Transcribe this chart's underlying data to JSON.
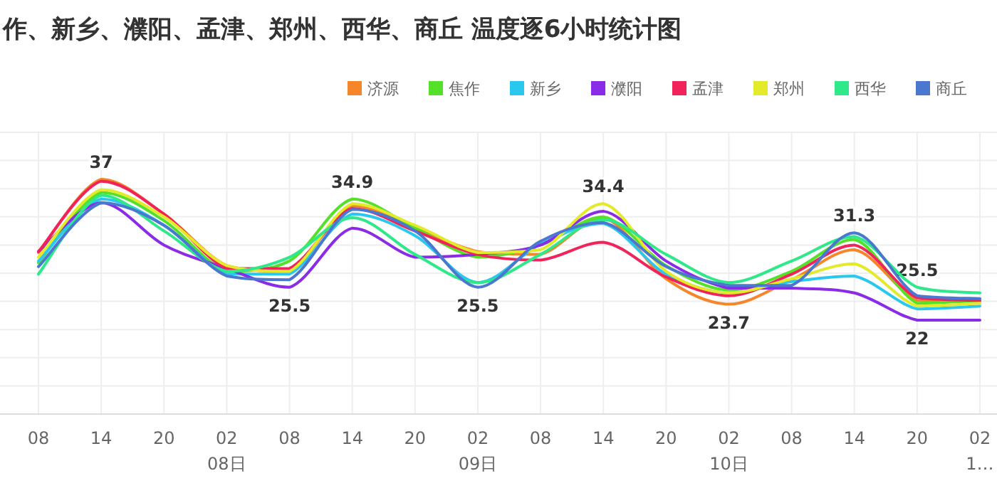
{
  "chart_data": {
    "type": "line",
    "title": "作、新乡、濮阳、孟津、郑州、西华、商丘 温度逐6小时统计图",
    "categories": [
      "08",
      "14",
      "20",
      "02\n08日",
      "08",
      "14",
      "20",
      "02\n09日",
      "08",
      "14",
      "20",
      "02\n10日",
      "08",
      "14",
      "20",
      "02\n1…"
    ],
    "ylim": [
      12,
      42
    ],
    "yticks": [
      {
        "value": 12,
        "label": null
      },
      {
        "value": 15,
        "label": null
      },
      {
        "value": 18,
        "label": null
      },
      {
        "value": 21,
        "label": null
      },
      {
        "value": 24,
        "label": null
      },
      {
        "value": 27,
        "label": null
      },
      {
        "value": 30,
        "label": null
      },
      {
        "value": 33,
        "label": null
      },
      {
        "value": 36,
        "label": null
      },
      {
        "value": 39,
        "label": null
      },
      {
        "value": 42,
        "label": null
      }
    ],
    "tick_labels": "x",
    "grid": true,
    "legend": "top right",
    "marker": "none",
    "line_style": "solid",
    "series": [
      {
        "name": "济源",
        "color": "#f5862a",
        "values": [
          29.2,
          37,
          33.3,
          27.8,
          27.2,
          34.2,
          31.8,
          29.3,
          29.0,
          32.9,
          26.4,
          23.7,
          26.3,
          29.5,
          24.1,
          24.0
        ],
        "value_labels": [
          null,
          "37",
          null,
          null,
          null,
          null,
          null,
          null,
          null,
          null,
          null,
          "23.7",
          null,
          null,
          null,
          null
        ]
      },
      {
        "name": "焦作",
        "color": "#55e02a",
        "values": [
          28.1,
          35.6,
          32.6,
          27.2,
          28.3,
          34.9,
          31.8,
          28.7,
          30.0,
          33.0,
          27.8,
          25.2,
          27.2,
          30.6,
          23.8,
          24.1
        ],
        "value_labels": [
          null,
          null,
          null,
          null,
          null,
          "34.9",
          null,
          null,
          null,
          null,
          null,
          null,
          null,
          null,
          null,
          null
        ]
      },
      {
        "name": "新乡",
        "color": "#2ac8ee",
        "values": [
          28.3,
          34.9,
          32.1,
          26.9,
          26.9,
          33.3,
          31.0,
          26.0,
          30.1,
          32.3,
          26.9,
          24.9,
          26.1,
          26.7,
          23.2,
          23.5
        ]
      },
      {
        "name": "濮阳",
        "color": "#8a2be8",
        "values": [
          29.3,
          34.5,
          30.0,
          27.5,
          25.5,
          31.8,
          28.7,
          29.0,
          30.0,
          33.6,
          28.3,
          25.4,
          25.4,
          24.9,
          22.0,
          22.0
        ],
        "value_labels": [
          null,
          null,
          null,
          null,
          "25.5",
          null,
          null,
          null,
          null,
          null,
          null,
          null,
          null,
          null,
          "22",
          null
        ]
      },
      {
        "name": "孟津",
        "color": "#f0245a",
        "values": [
          29.3,
          36.8,
          33.3,
          27.5,
          27.5,
          33.9,
          31.5,
          29.0,
          28.4,
          30.3,
          26.6,
          24.6,
          26.9,
          30.0,
          24.4,
          24.1
        ]
      },
      {
        "name": "郑州",
        "color": "#e2ea2a",
        "values": [
          28.7,
          35.9,
          33.0,
          27.8,
          27.2,
          34.4,
          32.1,
          29.2,
          29.5,
          34.4,
          27.2,
          24.9,
          26.4,
          28.0,
          23.5,
          23.8
        ],
        "value_labels": [
          null,
          null,
          null,
          null,
          null,
          null,
          null,
          null,
          null,
          "34.4",
          null,
          null,
          null,
          null,
          null,
          null
        ]
      },
      {
        "name": "西华",
        "color": "#2ee88a",
        "values": [
          26.9,
          35.3,
          31.5,
          27.2,
          28.7,
          32.9,
          29.0,
          26.0,
          29.0,
          32.7,
          29.0,
          26.0,
          28.3,
          30.9,
          25.5,
          24.9
        ],
        "value_labels": [
          null,
          null,
          null,
          null,
          null,
          null,
          null,
          null,
          null,
          null,
          null,
          null,
          null,
          null,
          "25.5",
          null
        ]
      },
      {
        "name": "商丘",
        "color": "#4a78d0",
        "values": [
          27.7,
          34.5,
          32.1,
          26.7,
          26.3,
          33.8,
          31.5,
          25.5,
          30.4,
          32.4,
          27.7,
          25.7,
          25.7,
          31.3,
          24.6,
          24.3
        ],
        "value_labels": [
          null,
          null,
          null,
          null,
          null,
          null,
          null,
          "25.5",
          null,
          null,
          null,
          null,
          null,
          "31.3",
          null,
          null
        ]
      }
    ]
  }
}
